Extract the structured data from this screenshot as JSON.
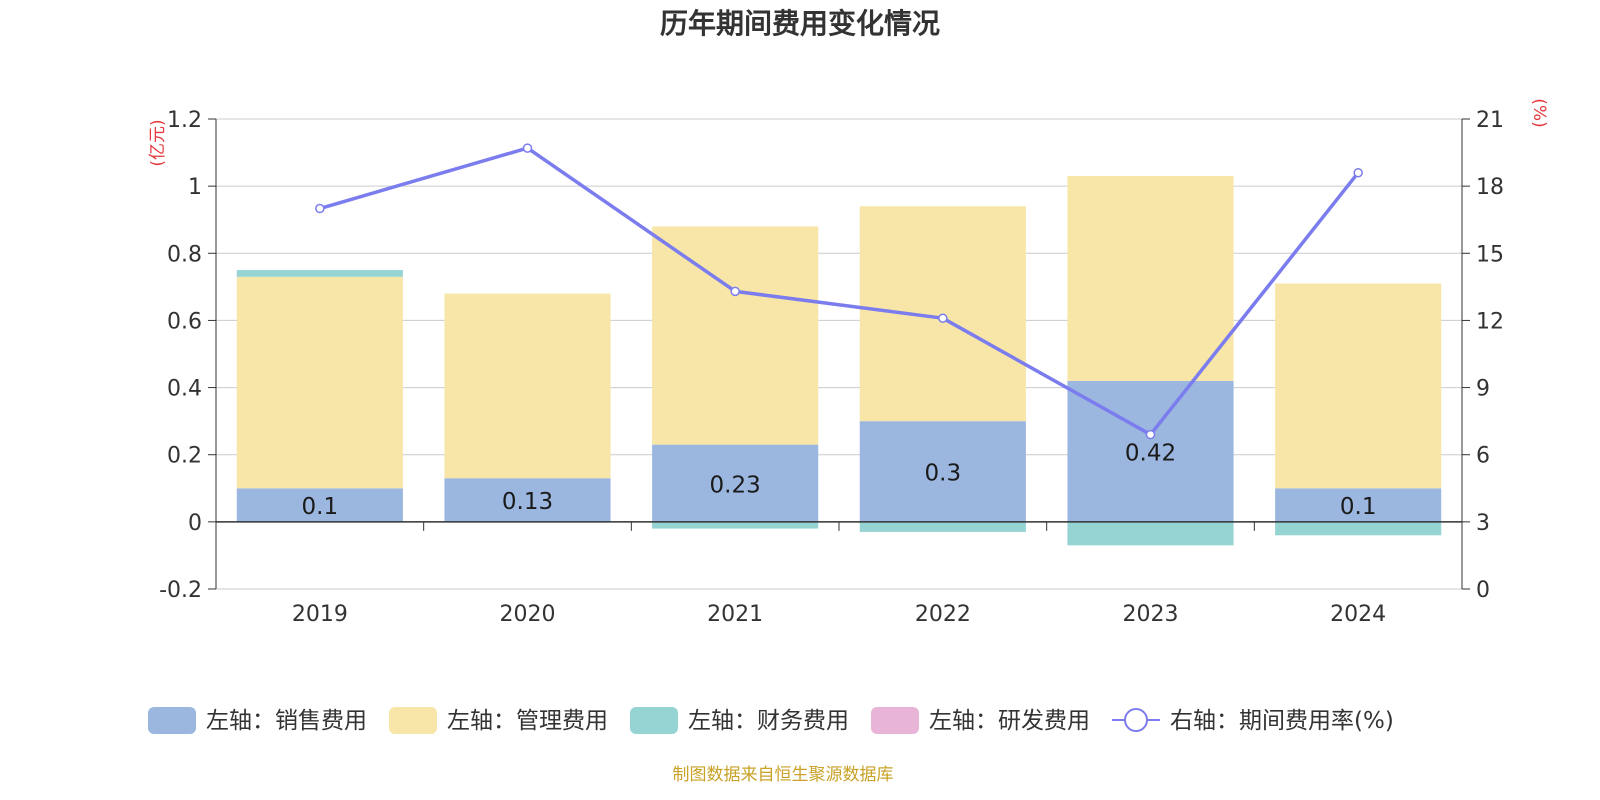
{
  "title": "历年期间费用变化情况",
  "source_note": "制图数据来自恒生聚源数据库",
  "units": {
    "left": "(亿元)",
    "right": "(%)"
  },
  "chart_data": {
    "type": "bar",
    "stacked": true,
    "categories": [
      "2019",
      "2020",
      "2021",
      "2022",
      "2023",
      "2024"
    ],
    "series": [
      {
        "name": "左轴：销售费用",
        "axis": "left",
        "type": "bar",
        "color": "#9bb7e0",
        "values": [
          0.1,
          0.13,
          0.23,
          0.3,
          0.42,
          0.1
        ],
        "labels": [
          "0.1",
          "0.13",
          "0.23",
          "0.3",
          "0.42",
          "0.1"
        ]
      },
      {
        "name": "左轴：管理费用",
        "axis": "left",
        "type": "bar",
        "color": "#f7e6a7",
        "values": [
          0.63,
          0.55,
          0.65,
          0.64,
          0.61,
          0.61
        ]
      },
      {
        "name": "左轴：财务费用",
        "axis": "left",
        "type": "bar",
        "color": "#96d4d4",
        "values": [
          0.02,
          0.0,
          -0.02,
          -0.03,
          -0.07,
          -0.04
        ]
      },
      {
        "name": "左轴：研发费用",
        "axis": "left",
        "type": "bar",
        "color": "#e8b5d8",
        "values": [
          0,
          0,
          0,
          0,
          0,
          0
        ]
      },
      {
        "name": "右轴：期间费用率(%)",
        "axis": "right",
        "type": "line",
        "color": "#7b7ced",
        "values": [
          17.0,
          19.7,
          13.3,
          12.1,
          6.9,
          18.6
        ]
      }
    ],
    "left_axis": {
      "min": -0.2,
      "max": 1.2,
      "ticks": [
        "-0.2",
        "0",
        "0.2",
        "0.4",
        "0.6",
        "0.8",
        "1",
        "1.2"
      ]
    },
    "right_axis": {
      "min": 0,
      "max": 21,
      "ticks": [
        "0",
        "3",
        "6",
        "9",
        "12",
        "15",
        "18",
        "21"
      ]
    },
    "grid": true,
    "legend_position": "bottom"
  }
}
